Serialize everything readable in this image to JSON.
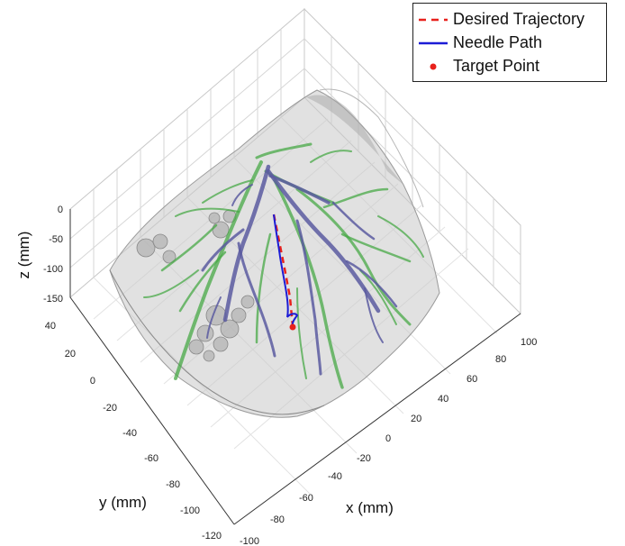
{
  "chart_data": {
    "type": "line3d",
    "title": "",
    "xlabel": "x (mm)",
    "ylabel": "y (mm)",
    "zlabel": "z (mm)",
    "xticks": [
      "-100",
      "-80",
      "-60",
      "-40",
      "-20",
      "0",
      "20",
      "40",
      "60",
      "80",
      "100"
    ],
    "yticks": [
      "-120",
      "-100",
      "-80",
      "-60",
      "-40",
      "-20",
      "0",
      "20",
      "40"
    ],
    "zticks": [
      "0",
      "-50",
      "-100",
      "-150"
    ],
    "xlim": [
      -100,
      100
    ],
    "ylim": [
      -120,
      40
    ],
    "zlim": [
      -150,
      0
    ],
    "grid": true,
    "legend_position": "top-right",
    "series": [
      {
        "name": "Desired Trajectory",
        "style": "dashed",
        "color": "#e8211c"
      },
      {
        "name": "Needle Path",
        "style": "solid",
        "color": "#1c1cd6"
      },
      {
        "name": "Target Point",
        "style": "marker",
        "color": "#e8211c"
      }
    ]
  }
}
